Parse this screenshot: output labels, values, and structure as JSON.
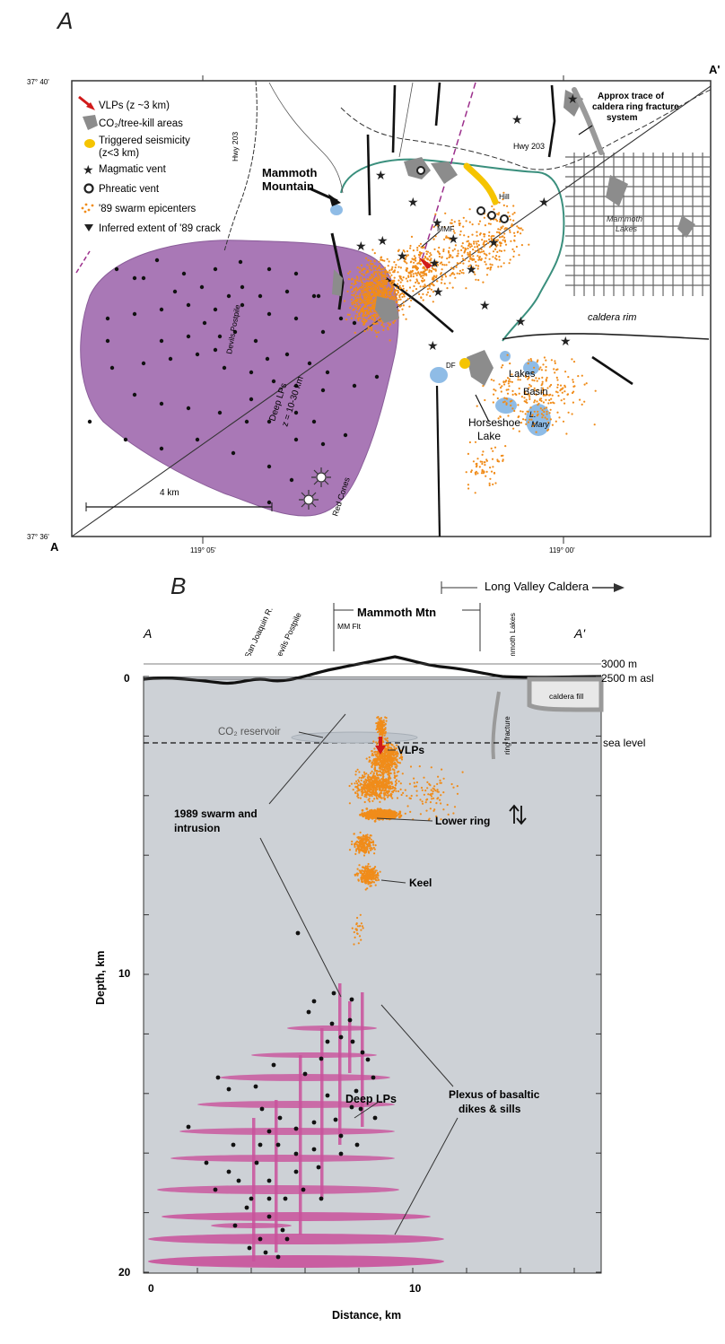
{
  "panel_a": {
    "letter": "A",
    "corner_labels": {
      "a_bottom_left": "A",
      "a_prime_top_right": "A'"
    },
    "lat_labels": {
      "top": "37° 40'",
      "bottom": "37° 36'"
    },
    "lon_labels": [
      "119° 05'",
      "119° 00'"
    ],
    "legend": [
      {
        "label": "VLPs (z ~3 km)",
        "icon": "vlp-arrow-icon",
        "color": "#d11a1a"
      },
      {
        "label": "CO₂/tree-kill areas",
        "icon": "tree-kill-icon",
        "color": "#8c8c8c"
      },
      {
        "label": "Triggered seismicity",
        "label2": "(z<3 km)",
        "icon": "yellow-dot-icon",
        "color": "#f5c400"
      },
      {
        "label": "Magmatic vent",
        "icon": "star-icon",
        "color": "#222222"
      },
      {
        "label": "Phreatic vent",
        "icon": "phreatic-vent-icon",
        "color": "#222222"
      },
      {
        "label": "'89 swarm epicenters",
        "icon": "orange-epicenter-icon",
        "color": "#f08c1a"
      },
      {
        "label": "Inferred extent of '89 crack",
        "icon": "crack-extent-icon",
        "color": "#222222"
      }
    ],
    "map_labels": {
      "mammoth_mountain_1": "Mammoth",
      "mammoth_mountain_2": "Mountain",
      "hwy_203_west": "Hwy 203",
      "hwy_203_east": "Hwy 203",
      "ring_trace_1": "Approx trace of",
      "ring_trace_2": "caldera ring fracture",
      "ring_trace_3": "system",
      "hill": "Hill",
      "mammoth_lakes_1": "Mammoth",
      "mammoth_lakes_2": "Lakes",
      "mmf": "MMF",
      "caldera_rim": "caldera rim",
      "devils_postpile_1": "Devils Postpile",
      "deep_lps_1": "Deep LPs",
      "deep_lps_2": "z = 10-30 km",
      "red_cones": "Red Cones",
      "scale": "4 km",
      "lakes": "Lakes",
      "basin": "Basin",
      "horseshoe_1": "Horseshoe",
      "horseshoe_2": "Lake",
      "lake_mary_1": "L.",
      "lake_mary_2": "Mary",
      "df": "DF"
    },
    "colors": {
      "deep_lp_region": "#a978b6",
      "lakes": "#8fbce6",
      "rim": "#3a8f7d",
      "swarm": "#f08c1a"
    }
  },
  "panel_b": {
    "letter": "B",
    "corner_labels": {
      "a": "A",
      "a_prime": "A'"
    },
    "top_labels": {
      "san_joaquin": "San Joaquin R.",
      "devils_postpile": "Devils Postpile",
      "long_valley": "Long Valley Caldera",
      "mammoth_mtn": "Mammoth Mtn",
      "mm_flt": "MM Flt",
      "mammoth_lakes": "Mammoth Lakes"
    },
    "right_labels": {
      "elev_3000": "3000 m",
      "elev_2500": "2500 m asl",
      "sea_level": "sea level"
    },
    "in_plot_labels": {
      "caldera_fill": "caldera fill",
      "co2_reservoir": "CO₂ reservoir",
      "vlps": "VLPs",
      "swarm_1": "1989 swarm and",
      "swarm_2": "intrusion",
      "lower_ring": "Lower ring",
      "keel": "Keel",
      "deep_lps": "Deep LPs",
      "plexus_1": "Plexus of basaltic",
      "plexus_2": "dikes & sills",
      "fracture": "ring fracture"
    },
    "y_axis": {
      "label": "Depth, km",
      "ticks": [
        "0",
        "10",
        "20"
      ]
    },
    "x_axis": {
      "label": "Distance, km",
      "ticks": [
        "0",
        "10"
      ]
    },
    "colors": {
      "background": "#cdd1d6",
      "swarm": "#f08c1a",
      "sills": "#c9519b"
    }
  }
}
